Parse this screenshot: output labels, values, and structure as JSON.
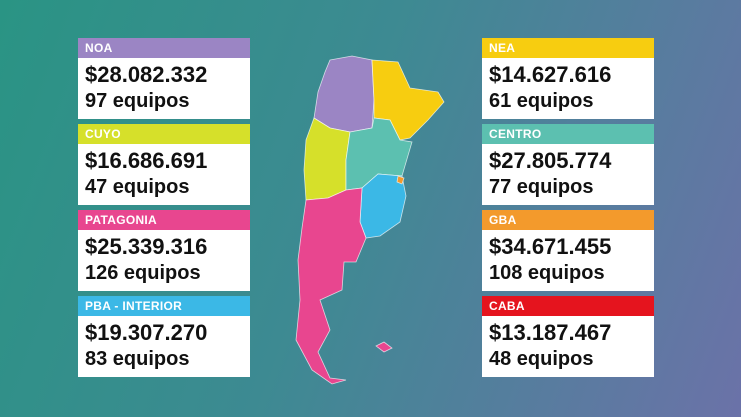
{
  "regions": [
    {
      "name": "NOA",
      "amount": "$28.082.332",
      "teams": "97 equipos",
      "color": "#9b85c4"
    },
    {
      "name": "CUYO",
      "amount": "$16.686.691",
      "teams": "47 equipos",
      "color": "#d6e02a"
    },
    {
      "name": "PATAGONIA",
      "amount": "$25.339.316",
      "teams": "126 equipos",
      "color": "#e8468f"
    },
    {
      "name": "PBA - INTERIOR",
      "amount": "$19.307.270",
      "teams": "83 equipos",
      "color": "#3bb8e6"
    },
    {
      "name": "NEA",
      "amount": "$14.627.616",
      "teams": "61 equipos",
      "color": "#f7cd10"
    },
    {
      "name": "CENTRO",
      "amount": "$27.805.774",
      "teams": "77 equipos",
      "color": "#5cc0b0"
    },
    {
      "name": "GBA",
      "amount": "$34.671.455",
      "teams": "108 equipos",
      "color": "#f39a2c"
    },
    {
      "name": "CABA",
      "amount": "$13.187.467",
      "teams": "48 equipos",
      "color": "#e5141e"
    }
  ]
}
